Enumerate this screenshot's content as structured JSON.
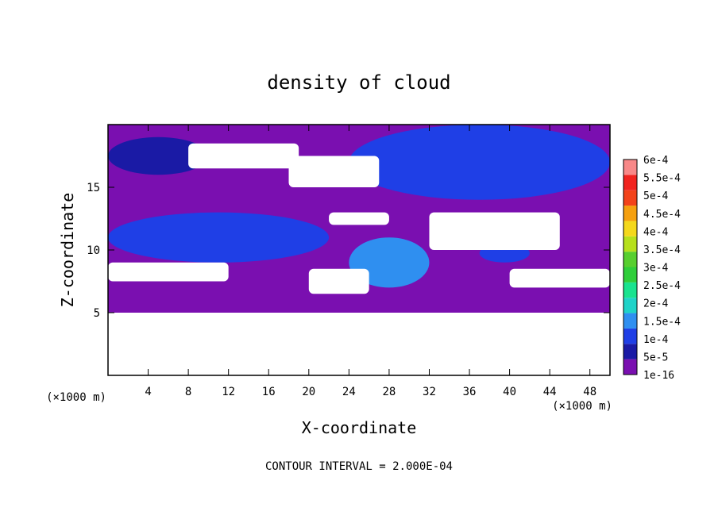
{
  "chart_data": {
    "type": "heatmap",
    "title": "density of cloud",
    "xlabel": "X-coordinate",
    "ylabel": "Z-coordinate",
    "x_unit": "(×1000 m)",
    "z_unit": "(×1000 m)",
    "xlim": [
      0,
      50
    ],
    "ylim": [
      0,
      20
    ],
    "x_ticks": [
      4,
      8,
      12,
      16,
      20,
      24,
      28,
      32,
      36,
      40,
      44,
      48
    ],
    "y_ticks": [
      5,
      10,
      15
    ],
    "contour_note": "CONTOUR INTERVAL = 2.000E-04",
    "colorbar": {
      "levels": [
        "1e-16",
        "5e-5",
        "1e-4",
        "1.5e-4",
        "2e-4",
        "2.5e-4",
        "3e-4",
        "3.5e-4",
        "4e-4",
        "4.5e-4",
        "5e-4",
        "5.5e-4",
        "6e-4"
      ],
      "colors": [
        "#7a0fb0",
        "#1a1aa5",
        "#1f3fe6",
        "#2f8ff0",
        "#1fd3c8",
        "#19e38f",
        "#2fce3a",
        "#57cf2f",
        "#b6e01c",
        "#f4d81c",
        "#f5a00f",
        "#f3431a",
        "#f1231f",
        "#f88888"
      ]
    },
    "field": {
      "background_value": "1e-16",
      "data_region_z_min": 5,
      "regions": [
        {
          "level_index": 1,
          "description": "upper-left band",
          "x": [
            0,
            10
          ],
          "z": [
            16,
            19
          ]
        },
        {
          "level_index": 2,
          "description": "upper-right cloud",
          "x": [
            24,
            50
          ],
          "z": [
            14,
            20
          ]
        },
        {
          "level_index": 2,
          "description": "left mid-level layer",
          "x": [
            0,
            22
          ],
          "z": [
            9,
            13
          ]
        },
        {
          "level_index": 3,
          "description": "central cloud core",
          "x": [
            24,
            32
          ],
          "z": [
            7,
            11
          ]
        },
        {
          "level_index": 2,
          "description": "right mid-level cloud",
          "x": [
            37,
            42
          ],
          "z": [
            9,
            10.5
          ]
        }
      ],
      "voids": [
        {
          "x": [
            8,
            19
          ],
          "z": [
            16.5,
            18.5
          ]
        },
        {
          "x": [
            18,
            27
          ],
          "z": [
            15,
            17.5
          ]
        },
        {
          "x": [
            0,
            12
          ],
          "z": [
            7.5,
            9
          ]
        },
        {
          "x": [
            22,
            28
          ],
          "z": [
            12,
            13
          ]
        },
        {
          "x": [
            32,
            45
          ],
          "z": [
            10,
            13
          ]
        },
        {
          "x": [
            20,
            26
          ],
          "z": [
            6.5,
            8.5
          ]
        },
        {
          "x": [
            40,
            50
          ],
          "z": [
            7,
            8.5
          ]
        }
      ]
    }
  }
}
